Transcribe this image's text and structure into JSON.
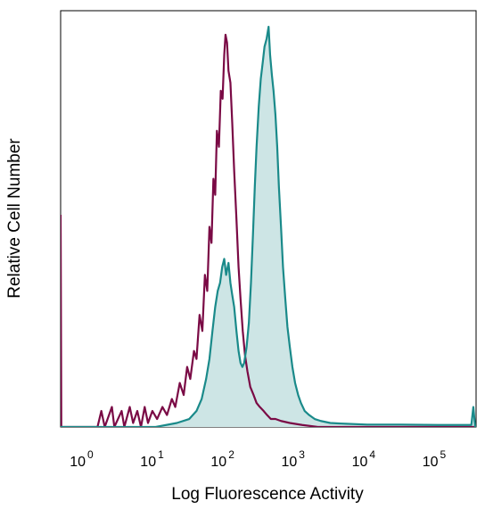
{
  "chart_data": {
    "type": "area",
    "title": "",
    "xlabel": "Log Fluorescence Activity",
    "ylabel": "Relative Cell Number",
    "x_scale": "log",
    "xlim": [
      0.45,
      350000
    ],
    "ylim": [
      0,
      1
    ],
    "grid": false,
    "legend": "none",
    "x_ticks": [
      {
        "base": "10",
        "exp": "0",
        "value": 1
      },
      {
        "base": "10",
        "exp": "1",
        "value": 10
      },
      {
        "base": "10",
        "exp": "2",
        "value": 100
      },
      {
        "base": "10",
        "exp": "3",
        "value": 1000
      },
      {
        "base": "10",
        "exp": "4",
        "value": 10000
      },
      {
        "base": "10",
        "exp": "5",
        "value": 100000
      }
    ],
    "series": [
      {
        "color": "#7a0a45",
        "fill": "none",
        "points": [
          [
            0.45,
            0.53
          ],
          [
            0.46,
            0.0
          ],
          [
            0.7,
            0.0
          ],
          [
            1.5,
            0.0
          ],
          [
            1.7,
            0.04
          ],
          [
            1.9,
            0.0
          ],
          [
            2.4,
            0.05
          ],
          [
            2.6,
            0.0
          ],
          [
            3.3,
            0.04
          ],
          [
            3.6,
            0.0
          ],
          [
            4.3,
            0.05
          ],
          [
            4.8,
            0.01
          ],
          [
            5.5,
            0.04
          ],
          [
            6.2,
            0.0
          ],
          [
            7.0,
            0.05
          ],
          [
            7.8,
            0.01
          ],
          [
            9.0,
            0.04
          ],
          [
            10.5,
            0.02
          ],
          [
            12.5,
            0.05
          ],
          [
            14.5,
            0.03
          ],
          [
            17.0,
            0.07
          ],
          [
            19.0,
            0.05
          ],
          [
            22.0,
            0.11
          ],
          [
            25.0,
            0.08
          ],
          [
            28.0,
            0.15
          ],
          [
            31.0,
            0.12
          ],
          [
            35.0,
            0.19
          ],
          [
            38.0,
            0.17
          ],
          [
            42.0,
            0.28
          ],
          [
            46.0,
            0.24
          ],
          [
            50.0,
            0.38
          ],
          [
            54.0,
            0.34
          ],
          [
            58.0,
            0.5
          ],
          [
            62.0,
            0.46
          ],
          [
            66.0,
            0.62
          ],
          [
            70.0,
            0.58
          ],
          [
            74.0,
            0.74
          ],
          [
            79.0,
            0.7
          ],
          [
            84.0,
            0.84
          ],
          [
            89.0,
            0.82
          ],
          [
            94.0,
            0.93
          ],
          [
            98.0,
            0.98
          ],
          [
            103.0,
            0.96
          ],
          [
            108.0,
            0.89
          ],
          [
            115.0,
            0.86
          ],
          [
            122.0,
            0.76
          ],
          [
            130.0,
            0.64
          ],
          [
            140.0,
            0.52
          ],
          [
            150.0,
            0.4
          ],
          [
            160.0,
            0.32
          ],
          [
            172.0,
            0.24
          ],
          [
            185.0,
            0.18
          ],
          [
            200.0,
            0.14
          ],
          [
            220.0,
            0.1
          ],
          [
            245.0,
            0.08
          ],
          [
            270.0,
            0.06
          ],
          [
            300.0,
            0.05
          ],
          [
            340.0,
            0.04
          ],
          [
            380.0,
            0.03
          ],
          [
            430.0,
            0.02
          ],
          [
            500.0,
            0.02
          ],
          [
            600.0,
            0.015
          ],
          [
            800.0,
            0.01
          ],
          [
            1200.0,
            0.005
          ],
          [
            2000.0,
            0.0
          ],
          [
            5000.0,
            0.0
          ],
          [
            20000.0,
            0.0
          ],
          [
            100000.0,
            0.0
          ],
          [
            350000.0,
            0.0
          ]
        ]
      },
      {
        "color": "#1a8a8a",
        "fill": "#cde5e5",
        "points": [
          [
            0.45,
            0.0
          ],
          [
            1.0,
            0.0
          ],
          [
            10.0,
            0.0
          ],
          [
            20.0,
            0.01
          ],
          [
            30.0,
            0.02
          ],
          [
            38.0,
            0.04
          ],
          [
            45.0,
            0.07
          ],
          [
            52.0,
            0.12
          ],
          [
            58.0,
            0.17
          ],
          [
            64.0,
            0.24
          ],
          [
            70.0,
            0.3
          ],
          [
            76.0,
            0.34
          ],
          [
            82.0,
            0.36
          ],
          [
            88.0,
            0.4
          ],
          [
            94.0,
            0.42
          ],
          [
            100.0,
            0.38
          ],
          [
            108.0,
            0.41
          ],
          [
            115.0,
            0.36
          ],
          [
            122.0,
            0.33
          ],
          [
            130.0,
            0.3
          ],
          [
            140.0,
            0.24
          ],
          [
            150.0,
            0.19
          ],
          [
            160.0,
            0.16
          ],
          [
            170.0,
            0.15
          ],
          [
            180.0,
            0.16
          ],
          [
            195.0,
            0.2
          ],
          [
            210.0,
            0.26
          ],
          [
            225.0,
            0.36
          ],
          [
            240.0,
            0.48
          ],
          [
            255.0,
            0.6
          ],
          [
            270.0,
            0.7
          ],
          [
            290.0,
            0.8
          ],
          [
            310.0,
            0.87
          ],
          [
            330.0,
            0.91
          ],
          [
            350.0,
            0.95
          ],
          [
            375.0,
            0.97
          ],
          [
            400.0,
            1.0
          ],
          [
            420.0,
            0.93
          ],
          [
            445.0,
            0.88
          ],
          [
            470.0,
            0.84
          ],
          [
            500.0,
            0.78
          ],
          [
            530.0,
            0.7
          ],
          [
            560.0,
            0.6
          ],
          [
            600.0,
            0.5
          ],
          [
            640.0,
            0.4
          ],
          [
            690.0,
            0.32
          ],
          [
            740.0,
            0.25
          ],
          [
            800.0,
            0.2
          ],
          [
            870.0,
            0.15
          ],
          [
            950.0,
            0.11
          ],
          [
            1050.0,
            0.08
          ],
          [
            1150.0,
            0.06
          ],
          [
            1300.0,
            0.04
          ],
          [
            1500.0,
            0.03
          ],
          [
            1800.0,
            0.02
          ],
          [
            2200.0,
            0.015
          ],
          [
            3000.0,
            0.01
          ],
          [
            5000.0,
            0.008
          ],
          [
            10000.0,
            0.006
          ],
          [
            30000.0,
            0.006
          ],
          [
            100000.0,
            0.005
          ],
          [
            300000.0,
            0.005
          ],
          [
            320000.0,
            0.05
          ],
          [
            340000.0,
            0.0
          ]
        ]
      }
    ]
  }
}
